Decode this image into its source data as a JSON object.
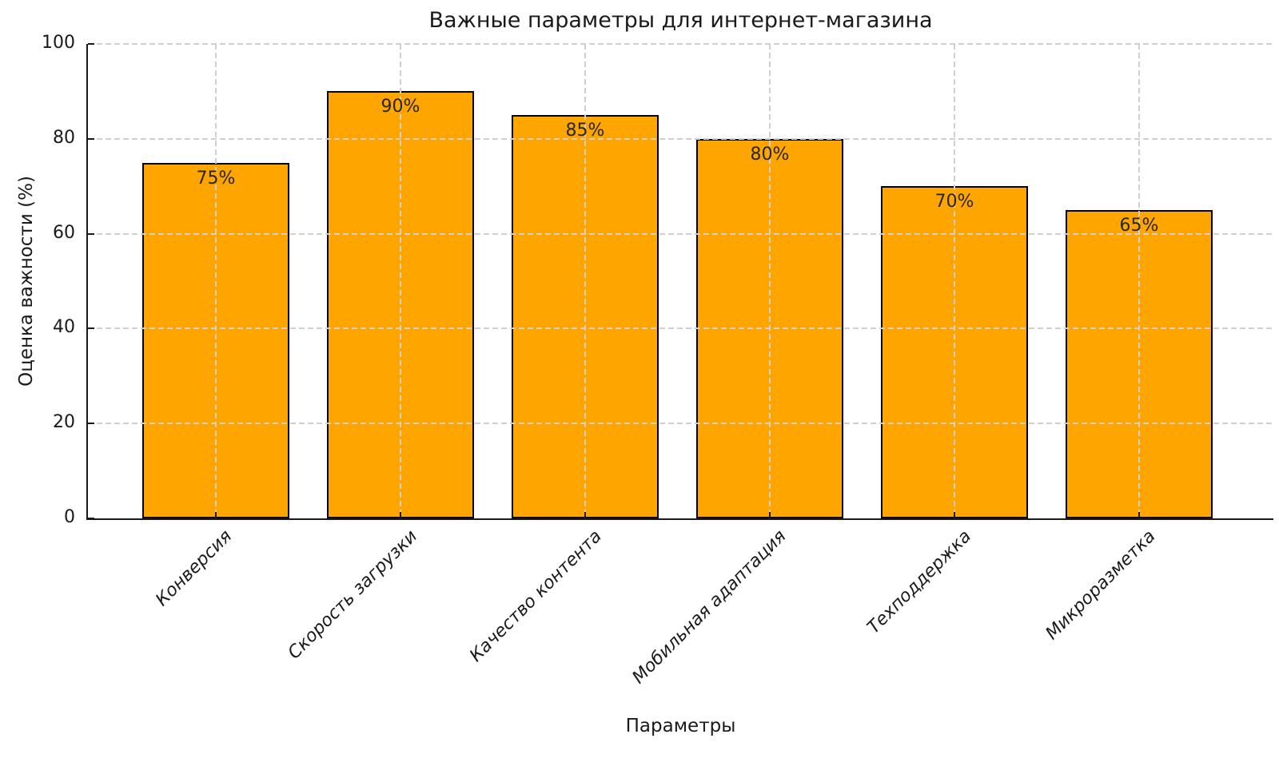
{
  "chart_data": {
    "type": "bar",
    "title": "Важные параметры для интернет-магазина",
    "xlabel": "Параметры",
    "ylabel": "Оценка важности (%)",
    "categories": [
      "Конверсия",
      "Скорость загрузки",
      "Качество контента",
      "Мобильная адаптация",
      "Техподдержка",
      "Микроразметка"
    ],
    "values": [
      75,
      90,
      85,
      80,
      70,
      65
    ],
    "value_labels": [
      "75%",
      "90%",
      "85%",
      "80%",
      "70%",
      "65%"
    ],
    "yticks": [
      0,
      20,
      40,
      60,
      80,
      100
    ],
    "ylim": [
      0,
      100
    ],
    "bar_color": "#FFA500",
    "bar_edge_color": "#000000",
    "grid": true,
    "grid_style": "dashed",
    "grid_color": "#cfcfcf",
    "legend_position": "none"
  }
}
